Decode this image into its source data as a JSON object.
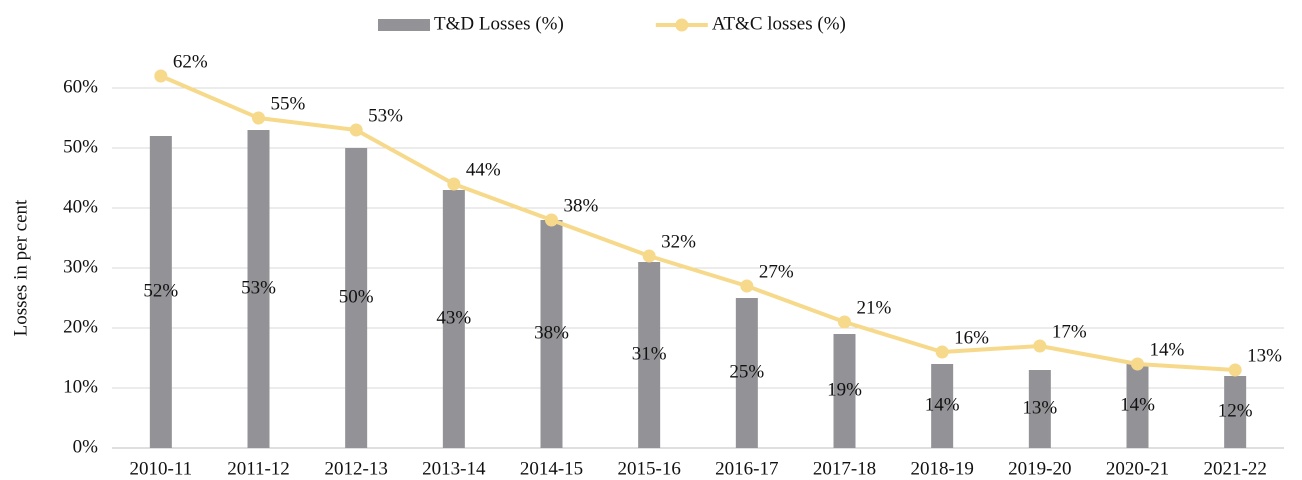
{
  "chart_data": {
    "type": "bar_line",
    "y_label": "Losses in per cent",
    "categories": [
      "2010-11",
      "2011-12",
      "2012-13",
      "2013-14",
      "2014-15",
      "2015-16",
      "2016-17",
      "2017-18",
      "2018-19",
      "2019-20",
      "2020-21",
      "2021-22"
    ],
    "series": [
      {
        "name": "T&D Losses (%)",
        "type": "bar",
        "color": "#939397",
        "values": [
          52,
          53,
          50,
          43,
          38,
          31,
          25,
          19,
          14,
          13,
          14,
          12
        ],
        "value_labels": [
          "52%",
          "53%",
          "50%",
          "43%",
          "38%",
          "31%",
          "25%",
          "19%",
          "14%",
          "13%",
          "14%",
          "12%"
        ]
      },
      {
        "name": "AT&C losses (%)",
        "type": "line",
        "color": "#f6d98a",
        "values": [
          62,
          55,
          53,
          44,
          38,
          32,
          27,
          21,
          16,
          17,
          14,
          13
        ],
        "value_labels": [
          "62%",
          "55%",
          "53%",
          "44%",
          "38%",
          "32%",
          "27%",
          "21%",
          "16%",
          "17%",
          "14%",
          "13%"
        ]
      }
    ],
    "ylim": [
      0,
      60
    ],
    "yticks": [
      {
        "value": 0,
        "label": "0%"
      },
      {
        "value": 10,
        "label": "10%"
      },
      {
        "value": 20,
        "label": "20%"
      },
      {
        "value": 30,
        "label": "30%"
      },
      {
        "value": 40,
        "label": "40%"
      },
      {
        "value": 50,
        "label": "50%"
      },
      {
        "value": 60,
        "label": "60%"
      }
    ],
    "grid": true,
    "legend": "top"
  }
}
